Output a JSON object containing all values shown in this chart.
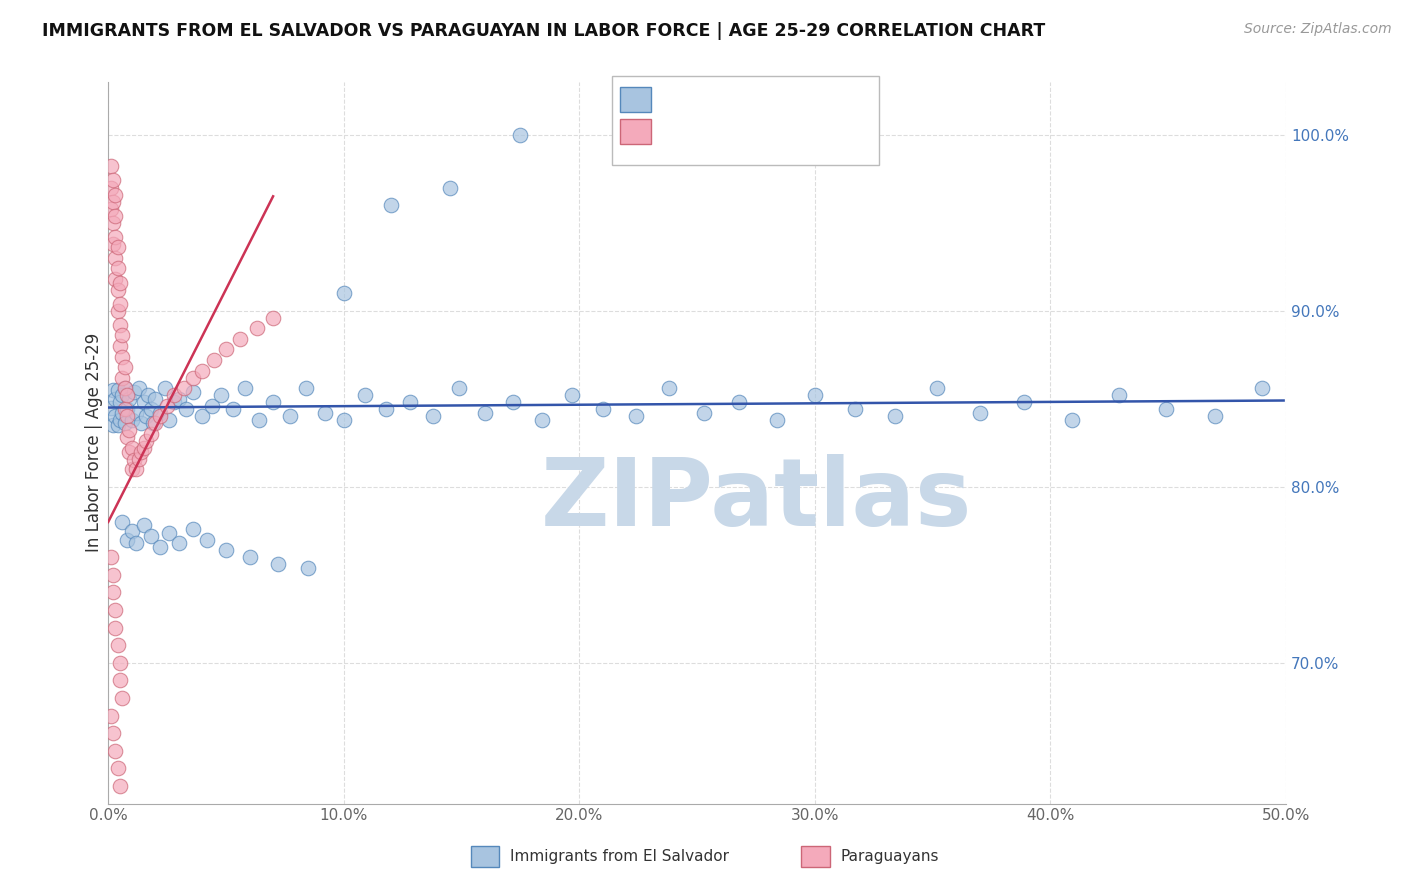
{
  "title": "IMMIGRANTS FROM EL SALVADOR VS PARAGUAYAN IN LABOR FORCE | AGE 25-29 CORRELATION CHART",
  "source": "Source: ZipAtlas.com",
  "ylabel": "In Labor Force | Age 25-29",
  "xlim": [
    0.0,
    0.5
  ],
  "ylim": [
    0.62,
    1.03
  ],
  "xticks": [
    0.0,
    0.1,
    0.2,
    0.3,
    0.4,
    0.5
  ],
  "yticks": [
    0.7,
    0.8,
    0.9,
    1.0
  ],
  "blue_color": "#A8C4E0",
  "blue_edge_color": "#5588BB",
  "pink_color": "#F4AABB",
  "pink_edge_color": "#CC6677",
  "blue_line_color": "#3355AA",
  "pink_line_color": "#CC3355",
  "blue_trendline_x": [
    0.0,
    0.499
  ],
  "blue_trendline_y": [
    0.845,
    0.849
  ],
  "pink_trendline_x": [
    0.0,
    0.07
  ],
  "pink_trendline_y": [
    0.78,
    0.965
  ],
  "watermark_text": "ZIPatlas",
  "watermark_color": "#C8D8E8",
  "grid_color": "#DDDDDD",
  "bg_color": "#FFFFFF",
  "blue_x": [
    0.001,
    0.002,
    0.002,
    0.003,
    0.003,
    0.004,
    0.004,
    0.005,
    0.005,
    0.006,
    0.006,
    0.007,
    0.007,
    0.008,
    0.009,
    0.01,
    0.011,
    0.012,
    0.013,
    0.014,
    0.015,
    0.016,
    0.017,
    0.018,
    0.019,
    0.02,
    0.022,
    0.024,
    0.026,
    0.028,
    0.03,
    0.033,
    0.036,
    0.04,
    0.044,
    0.048,
    0.053,
    0.058,
    0.064,
    0.07,
    0.077,
    0.084,
    0.092,
    0.1,
    0.109,
    0.118,
    0.128,
    0.138,
    0.149,
    0.16,
    0.172,
    0.184,
    0.197,
    0.21,
    0.224,
    0.238,
    0.253,
    0.268,
    0.284,
    0.3,
    0.317,
    0.334,
    0.352,
    0.37,
    0.389,
    0.409,
    0.429,
    0.449,
    0.47,
    0.49,
    0.006,
    0.008,
    0.01,
    0.012,
    0.015,
    0.018,
    0.022,
    0.026,
    0.03,
    0.036,
    0.042,
    0.05,
    0.06,
    0.072,
    0.085,
    0.1,
    0.12,
    0.145,
    0.175
  ],
  "blue_y": [
    0.845,
    0.855,
    0.835,
    0.85,
    0.84,
    0.855,
    0.835,
    0.848,
    0.838,
    0.852,
    0.842,
    0.856,
    0.836,
    0.844,
    0.85,
    0.838,
    0.854,
    0.842,
    0.856,
    0.836,
    0.848,
    0.84,
    0.852,
    0.844,
    0.836,
    0.85,
    0.842,
    0.856,
    0.838,
    0.848,
    0.85,
    0.844,
    0.854,
    0.84,
    0.846,
    0.852,
    0.844,
    0.856,
    0.838,
    0.848,
    0.84,
    0.856,
    0.842,
    0.838,
    0.852,
    0.844,
    0.848,
    0.84,
    0.856,
    0.842,
    0.848,
    0.838,
    0.852,
    0.844,
    0.84,
    0.856,
    0.842,
    0.848,
    0.838,
    0.852,
    0.844,
    0.84,
    0.856,
    0.842,
    0.848,
    0.838,
    0.852,
    0.844,
    0.84,
    0.856,
    0.78,
    0.77,
    0.775,
    0.768,
    0.778,
    0.772,
    0.766,
    0.774,
    0.768,
    0.776,
    0.77,
    0.764,
    0.76,
    0.756,
    0.754,
    0.91,
    0.96,
    0.97,
    1.0
  ],
  "pink_x": [
    0.001,
    0.001,
    0.001,
    0.002,
    0.002,
    0.002,
    0.002,
    0.003,
    0.003,
    0.003,
    0.003,
    0.003,
    0.004,
    0.004,
    0.004,
    0.004,
    0.005,
    0.005,
    0.005,
    0.005,
    0.006,
    0.006,
    0.006,
    0.007,
    0.007,
    0.007,
    0.008,
    0.008,
    0.008,
    0.009,
    0.009,
    0.01,
    0.01,
    0.011,
    0.012,
    0.013,
    0.014,
    0.015,
    0.016,
    0.018,
    0.02,
    0.022,
    0.025,
    0.028,
    0.032,
    0.036,
    0.04,
    0.045,
    0.05,
    0.056,
    0.063,
    0.07,
    0.001,
    0.002,
    0.002,
    0.003,
    0.003,
    0.004,
    0.005,
    0.005,
    0.006,
    0.001,
    0.002,
    0.003,
    0.004,
    0.005
  ],
  "pink_y": [
    0.958,
    0.97,
    0.982,
    0.938,
    0.95,
    0.962,
    0.974,
    0.918,
    0.93,
    0.942,
    0.954,
    0.966,
    0.9,
    0.912,
    0.924,
    0.936,
    0.88,
    0.892,
    0.904,
    0.916,
    0.862,
    0.874,
    0.886,
    0.844,
    0.856,
    0.868,
    0.828,
    0.84,
    0.852,
    0.82,
    0.832,
    0.81,
    0.822,
    0.815,
    0.81,
    0.816,
    0.82,
    0.822,
    0.826,
    0.83,
    0.836,
    0.84,
    0.846,
    0.852,
    0.856,
    0.862,
    0.866,
    0.872,
    0.878,
    0.884,
    0.89,
    0.896,
    0.76,
    0.75,
    0.74,
    0.73,
    0.72,
    0.71,
    0.7,
    0.69,
    0.68,
    0.67,
    0.66,
    0.65,
    0.64,
    0.63
  ]
}
